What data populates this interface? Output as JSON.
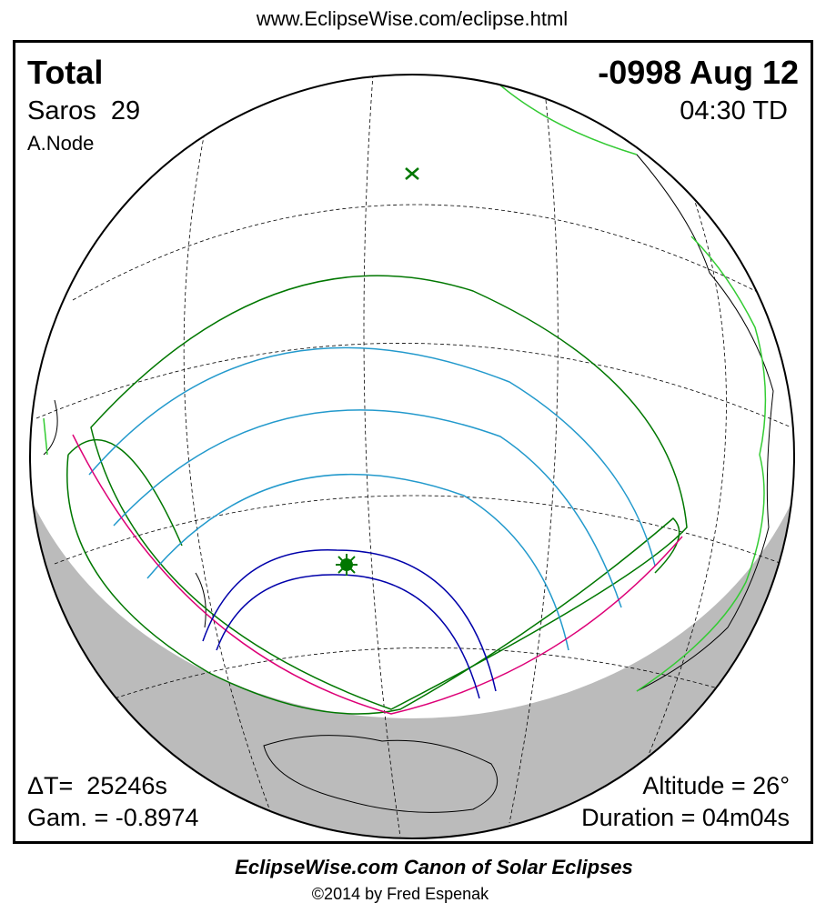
{
  "header": {
    "url": "www.EclipseWise.com/eclipse.html"
  },
  "eclipse": {
    "type": "Total",
    "saros": "Saros  29",
    "node": "A.Node",
    "date": "-0998 Aug 12",
    "time": "04:30 TD",
    "delta_t": "ΔT=  25246s",
    "gamma": "Gam. = -0.8974",
    "altitude": "Altitude = 26°",
    "duration": "Duration = 04m04s"
  },
  "footer": {
    "title": "EclipseWise.com Canon of Solar Eclipses",
    "credit": "©2014 by Fred Espenak"
  }
}
